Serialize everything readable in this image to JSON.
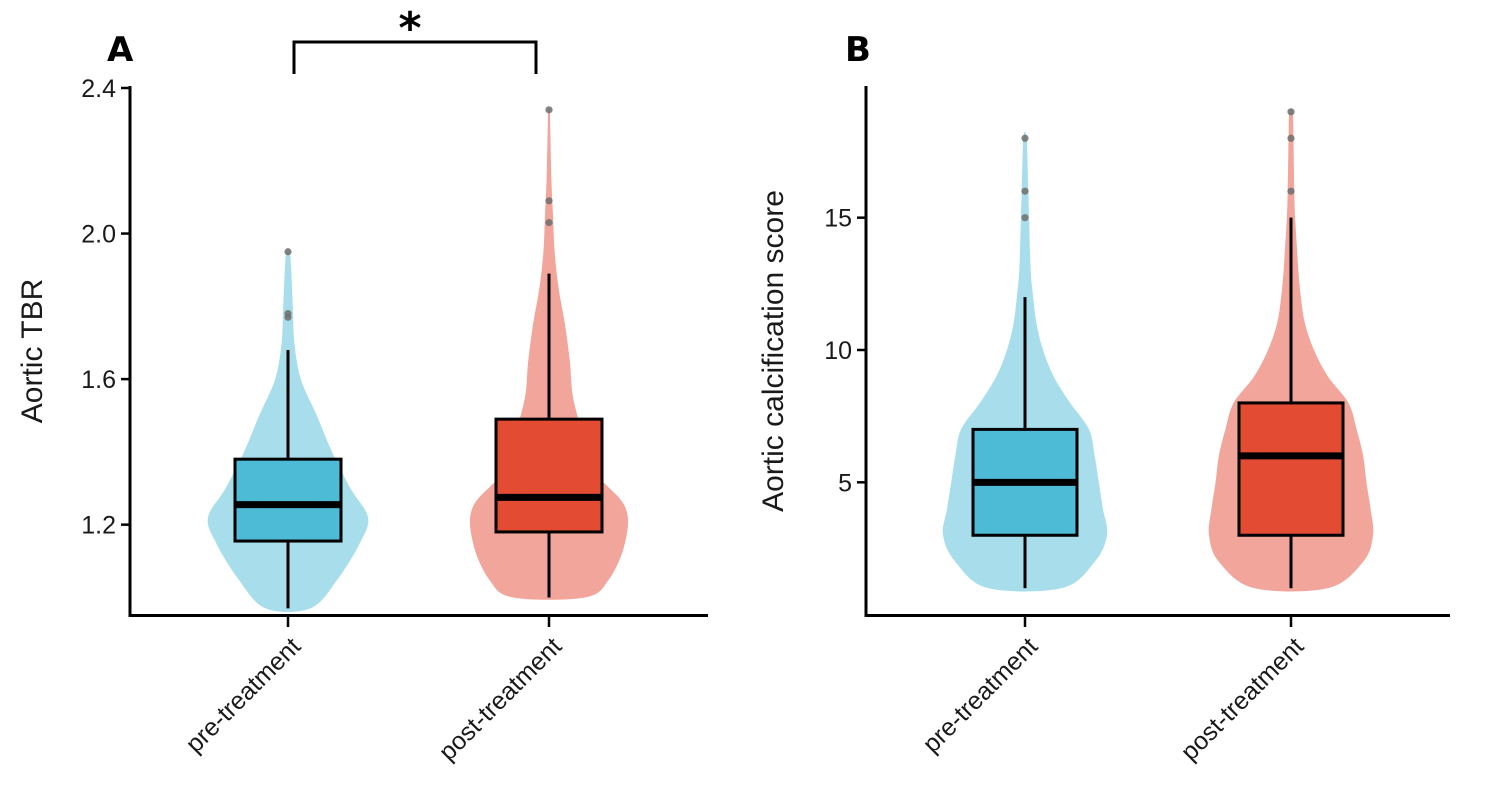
{
  "chart_data": [
    {
      "panel": "A",
      "type": "violin+box",
      "ylabel": "Aortic TBR",
      "xlabel": "",
      "categories": [
        "pre-treatment",
        "post-treatment"
      ],
      "ylim": [
        0.96,
        2.4
      ],
      "yticks": [
        1.2,
        1.6,
        2.0,
        2.4
      ],
      "ytick_labels": [
        "1.2",
        "1.6",
        "2.0",
        "2.4"
      ],
      "significance": {
        "between": [
          "pre-treatment",
          "post-treatment"
        ],
        "label": "*"
      },
      "groups": [
        {
          "name": "pre-treatment",
          "box_color": "#4DBAD6",
          "violin_color": "#A8DEEB",
          "min": 0.97,
          "q1": 1.155,
          "median": 1.255,
          "q3": 1.38,
          "max": 1.68,
          "outliers": [
            1.77,
            1.78,
            1.95
          ],
          "density": [
            [
              0.97,
              0.28
            ],
            [
              1.05,
              0.62
            ],
            [
              1.15,
              0.9
            ],
            [
              1.22,
              1.0
            ],
            [
              1.3,
              0.78
            ],
            [
              1.4,
              0.55
            ],
            [
              1.5,
              0.36
            ],
            [
              1.6,
              0.16
            ],
            [
              1.7,
              0.08
            ],
            [
              1.8,
              0.06
            ],
            [
              1.9,
              0.04
            ],
            [
              1.95,
              0.02
            ]
          ]
        },
        {
          "name": "post-treatment",
          "box_color": "#E34B33",
          "violin_color": "#F2A59A",
          "min": 1.0,
          "q1": 1.18,
          "median": 1.275,
          "q3": 1.49,
          "max": 1.89,
          "outliers": [
            2.03,
            2.09,
            2.34
          ],
          "density": [
            [
              1.0,
              0.45
            ],
            [
              1.05,
              0.75
            ],
            [
              1.15,
              0.95
            ],
            [
              1.25,
              0.95
            ],
            [
              1.35,
              0.55
            ],
            [
              1.45,
              0.42
            ],
            [
              1.55,
              0.3
            ],
            [
              1.65,
              0.26
            ],
            [
              1.75,
              0.2
            ],
            [
              1.85,
              0.12
            ],
            [
              1.95,
              0.07
            ],
            [
              2.05,
              0.05
            ],
            [
              2.15,
              0.03
            ],
            [
              2.3,
              0.015
            ],
            [
              2.34,
              0.01
            ]
          ]
        }
      ]
    },
    {
      "panel": "B",
      "type": "violin+box",
      "ylabel": "Aortic calcification score",
      "xlabel": "",
      "categories": [
        "pre-treatment",
        "post-treatment"
      ],
      "ylim": [
        0.1,
        19.9
      ],
      "yticks": [
        5,
        10,
        15
      ],
      "ytick_labels": [
        "5",
        "10",
        "15"
      ],
      "groups": [
        {
          "name": "pre-treatment",
          "box_color": "#4DBAD6",
          "violin_color": "#A8DEEB",
          "min": 1,
          "q1": 3,
          "median": 5,
          "q3": 7,
          "max": 12,
          "outliers": [
            15,
            16,
            18
          ],
          "density": [
            [
              1,
              0.45
            ],
            [
              2,
              0.85
            ],
            [
              3,
              1.0
            ],
            [
              4,
              0.95
            ],
            [
              5,
              0.9
            ],
            [
              6,
              0.85
            ],
            [
              7,
              0.78
            ],
            [
              8,
              0.55
            ],
            [
              9,
              0.35
            ],
            [
              10,
              0.22
            ],
            [
              11,
              0.14
            ],
            [
              12,
              0.1
            ],
            [
              13,
              0.07
            ],
            [
              15,
              0.05
            ],
            [
              16,
              0.04
            ],
            [
              18,
              0.02
            ]
          ]
        },
        {
          "name": "post-treatment",
          "box_color": "#E34B33",
          "violin_color": "#F2A59A",
          "min": 1,
          "q1": 3,
          "median": 6,
          "q3": 8,
          "max": 15,
          "outliers": [
            16,
            18,
            19
          ],
          "density": [
            [
              1,
              0.45
            ],
            [
              2,
              0.88
            ],
            [
              3,
              1.0
            ],
            [
              4,
              0.97
            ],
            [
              5,
              0.92
            ],
            [
              6,
              0.88
            ],
            [
              7,
              0.8
            ],
            [
              8,
              0.7
            ],
            [
              9,
              0.45
            ],
            [
              10,
              0.28
            ],
            [
              11,
              0.17
            ],
            [
              12,
              0.12
            ],
            [
              13,
              0.09
            ],
            [
              14,
              0.07
            ],
            [
              15,
              0.05
            ],
            [
              16,
              0.04
            ],
            [
              18,
              0.03
            ],
            [
              19,
              0.02
            ]
          ]
        }
      ]
    }
  ]
}
